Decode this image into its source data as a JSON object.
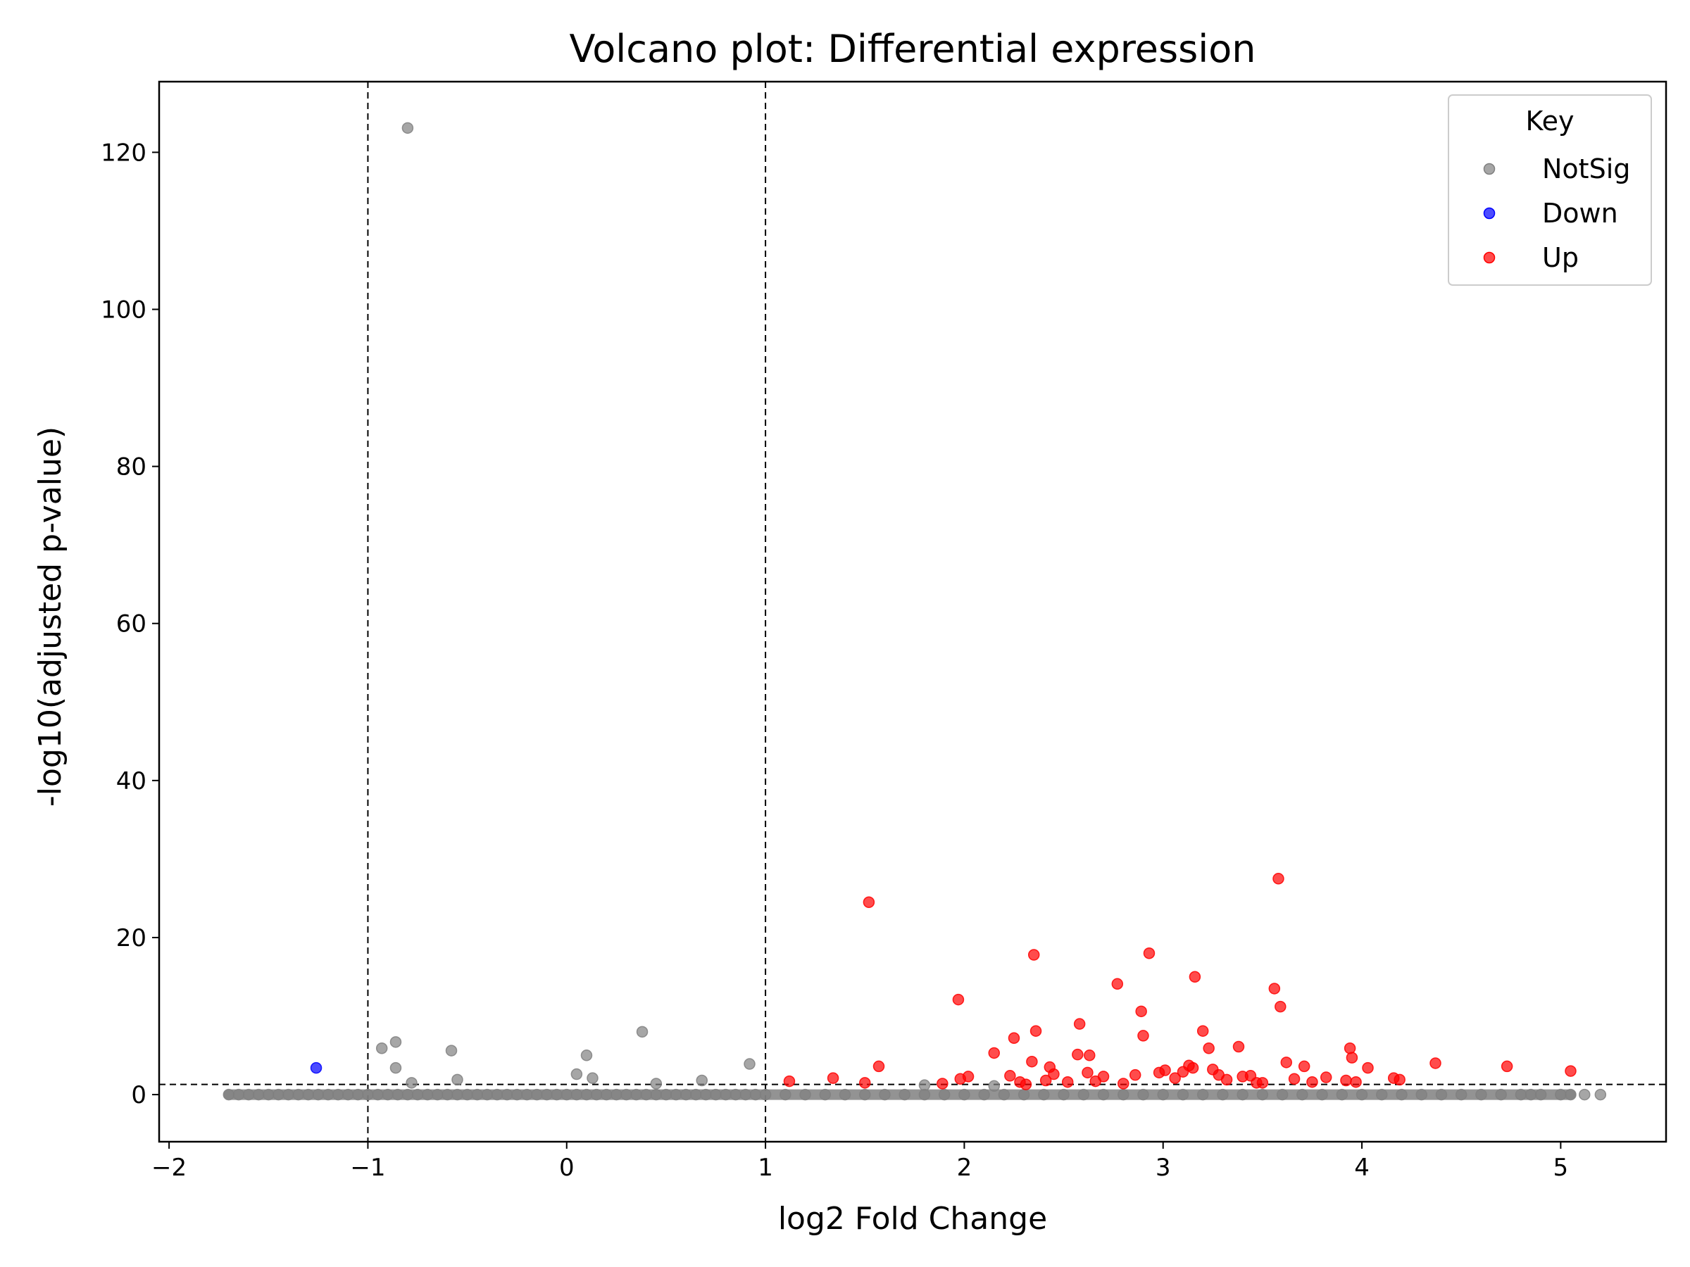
{
  "chart_data": {
    "type": "scatter",
    "title": "Volcano plot: Differential expression",
    "xlabel": "log2 Fold Change",
    "ylabel": "-log10(adjusted p-value)",
    "xlim": [
      -2.05,
      5.53
    ],
    "ylim": [
      -6,
      129
    ],
    "xticks": [
      -2,
      -1,
      0,
      1,
      2,
      3,
      4,
      5
    ],
    "yticks": [
      0,
      20,
      40,
      60,
      80,
      100,
      120
    ],
    "xtick_labels": [
      "−2",
      "−1",
      "0",
      "1",
      "2",
      "3",
      "4",
      "5"
    ],
    "ytick_labels": [
      "0",
      "20",
      "40",
      "60",
      "80",
      "100",
      "120"
    ],
    "thresholds": {
      "log2fc": [
        -1,
        1
      ],
      "neg_log10_padj": 1.3
    },
    "grid": false,
    "legend": {
      "title": "Key",
      "position": "top-right"
    },
    "series": [
      {
        "name": "NotSig",
        "color": "#808080",
        "x": [
          -1.7,
          -1.65,
          -1.6,
          -1.55,
          -1.5,
          -1.45,
          -1.4,
          -1.35,
          -1.3,
          -1.25,
          -1.2,
          -1.15,
          -1.1,
          -1.05,
          -1.0,
          -0.95,
          -0.9,
          -0.85,
          -0.8,
          -0.75,
          -0.7,
          -0.65,
          -0.6,
          -0.55,
          -0.5,
          -0.45,
          -0.4,
          -0.35,
          -0.3,
          -0.25,
          -0.2,
          -0.15,
          -0.1,
          -0.05,
          0.0,
          0.05,
          0.1,
          0.15,
          0.2,
          0.25,
          0.3,
          0.35,
          0.4,
          0.45,
          0.5,
          0.55,
          0.6,
          0.65,
          0.7,
          0.75,
          0.8,
          0.85,
          0.9,
          0.95,
          1.0,
          1.1,
          1.2,
          1.3,
          1.4,
          1.5,
          1.6,
          1.7,
          1.8,
          1.9,
          2.0,
          2.1,
          2.2,
          2.3,
          2.4,
          2.5,
          2.6,
          2.7,
          2.8,
          2.9,
          3.0,
          3.1,
          3.2,
          3.3,
          3.4,
          3.5,
          3.6,
          3.7,
          3.8,
          3.9,
          4.0,
          4.1,
          4.2,
          4.3,
          4.4,
          4.5,
          4.6,
          4.7,
          4.8,
          4.85,
          4.9,
          5.0,
          5.05,
          5.12,
          5.2,
          -0.8,
          -0.93,
          -0.86,
          -0.86,
          -0.58,
          -0.55,
          -0.78,
          0.1,
          0.05,
          0.13,
          0.38,
          0.68,
          0.45,
          0.92,
          1.8,
          2.15
        ],
        "y": [
          0,
          0,
          0,
          0,
          0,
          0,
          0,
          0,
          0,
          0,
          0,
          0,
          0,
          0,
          0,
          0,
          0,
          0,
          0,
          0,
          0,
          0,
          0,
          0,
          0,
          0,
          0,
          0,
          0,
          0,
          0,
          0,
          0,
          0,
          0,
          0,
          0,
          0,
          0,
          0,
          0,
          0,
          0,
          0,
          0,
          0,
          0,
          0,
          0,
          0,
          0,
          0,
          0,
          0,
          0,
          0,
          0,
          0,
          0,
          0,
          0,
          0,
          0,
          0,
          0,
          0,
          0,
          0,
          0,
          0,
          0,
          0,
          0,
          0,
          0,
          0,
          0,
          0,
          0,
          0,
          0,
          0,
          0,
          0,
          0,
          0,
          0,
          0,
          0,
          0,
          0,
          0,
          0,
          0,
          0,
          0,
          0,
          0,
          0,
          123.1,
          5.9,
          6.7,
          3.4,
          5.6,
          1.9,
          1.5,
          5.0,
          2.6,
          2.1,
          8.0,
          1.8,
          1.4,
          3.9,
          1.2,
          1.1
        ]
      },
      {
        "name": "Down",
        "color": "#0000ff",
        "x": [
          -1.26
        ],
        "y": [
          3.4
        ]
      },
      {
        "name": "Up",
        "color": "#ff0000",
        "x": [
          1.52,
          3.58,
          2.35,
          2.93,
          3.16,
          2.77,
          3.56,
          3.59,
          1.97,
          2.89,
          2.58,
          3.2,
          2.9,
          2.36,
          2.25,
          3.38,
          3.94,
          3.23,
          2.15,
          2.57,
          2.63,
          3.95,
          4.37,
          4.73,
          3.62,
          3.71,
          5.05,
          2.34,
          1.57,
          2.43,
          3.13,
          3.15,
          2.98,
          3.01,
          4.03,
          1.12,
          1.34,
          1.98,
          2.02,
          2.23,
          2.28,
          2.45,
          2.62,
          2.7,
          2.86,
          3.06,
          3.1,
          3.25,
          3.32,
          3.44,
          3.5,
          3.66,
          3.82,
          3.97,
          4.16,
          1.5,
          1.89,
          2.41,
          2.52,
          2.8,
          3.28,
          3.47,
          4.19,
          2.31,
          2.66,
          3.4,
          3.75,
          3.92
        ],
        "y": [
          24.5,
          27.5,
          17.8,
          18.0,
          15.0,
          14.1,
          13.5,
          11.2,
          12.1,
          10.6,
          9.0,
          8.1,
          7.5,
          8.1,
          7.2,
          6.1,
          5.9,
          5.9,
          5.3,
          5.1,
          5.0,
          4.7,
          4.0,
          3.6,
          4.1,
          3.6,
          3.0,
          4.2,
          3.6,
          3.5,
          3.7,
          3.4,
          2.8,
          3.1,
          3.4,
          1.7,
          2.1,
          2.0,
          2.3,
          2.4,
          1.6,
          2.6,
          2.8,
          2.3,
          2.5,
          2.1,
          2.9,
          3.2,
          1.9,
          2.4,
          1.5,
          2.0,
          2.2,
          1.6,
          2.1,
          1.5,
          1.4,
          1.8,
          1.6,
          1.4,
          2.5,
          1.5,
          1.9,
          1.3,
          1.7,
          2.3,
          1.6,
          1.8
        ]
      }
    ]
  }
}
